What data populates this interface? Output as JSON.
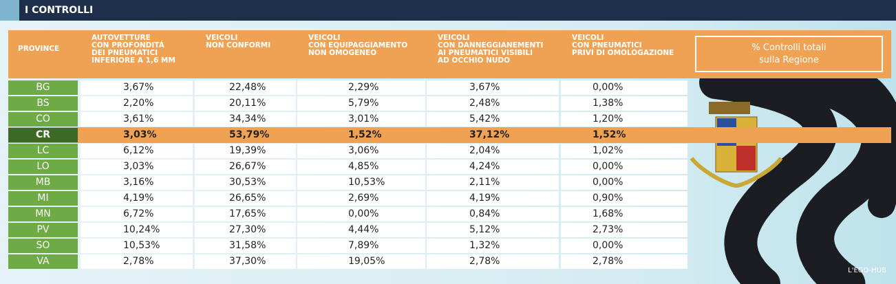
{
  "header": {
    "title": "I CONTROLLI"
  },
  "table": {
    "columns": [
      [
        "PROVINCE"
      ],
      [
        "AUTOVETTURE",
        "CON PROFONDITÁ",
        "DEI PNEUMATICI",
        "INFERIORE A 1,6 MM"
      ],
      [
        "VEICOLI",
        "NON CONFORMI"
      ],
      [
        "VEICOLI",
        "CON EQUIPAGGIAMENTO",
        "NON OMOGENEO"
      ],
      [
        "VEICOLI",
        "CON DANNEGGIANEMENTI",
        "AI PNEUMATICI VISIBILI",
        "AD OCCHIO NUDO"
      ],
      [
        "VEICOLI",
        "CON PNEUMATICI",
        "PRIVI DI OMOLOGAZIONE"
      ]
    ],
    "legend": [
      "% Controlli totali",
      "sulla Regione"
    ],
    "rows": [
      [
        "BG",
        "3,67%",
        "22,48%",
        "2,29%",
        "3,67%",
        "0,00%"
      ],
      [
        "BS",
        "2,20%",
        "20,11%",
        "5,79%",
        "2,48%",
        "1,38%"
      ],
      [
        "CO",
        "3,61%",
        "34,34%",
        "3,01%",
        "5,42%",
        "1,20%"
      ],
      [
        "CR",
        "3,03%",
        "53,79%",
        "1,52%",
        "37,12%",
        "1,52%"
      ],
      [
        "LC",
        "6,12%",
        "19,39%",
        "3,06%",
        "2,04%",
        "1,02%"
      ],
      [
        "LO",
        "3,03%",
        "26,67%",
        "4,85%",
        "4,24%",
        "0,00%"
      ],
      [
        "MB",
        "3,16%",
        "30,53%",
        "10,53%",
        "2,11%",
        "0,00%"
      ],
      [
        "MI",
        "4,19%",
        "26,65%",
        "2,69%",
        "4,19%",
        "0,90%"
      ],
      [
        "MN",
        "6,72%",
        "17,65%",
        "0,00%",
        "0,84%",
        "1,68%"
      ],
      [
        "PV",
        "10,24%",
        "27,30%",
        "4,44%",
        "5,12%",
        "2,73%"
      ],
      [
        "SO",
        "10,53%",
        "31,58%",
        "7,89%",
        "1,32%",
        "0,00%"
      ],
      [
        "VA",
        "2,78%",
        "37,30%",
        "19,05%",
        "2,78%",
        "2,78%"
      ]
    ]
  },
  "footer": {
    "credit": "L'EGO-HUB"
  }
}
